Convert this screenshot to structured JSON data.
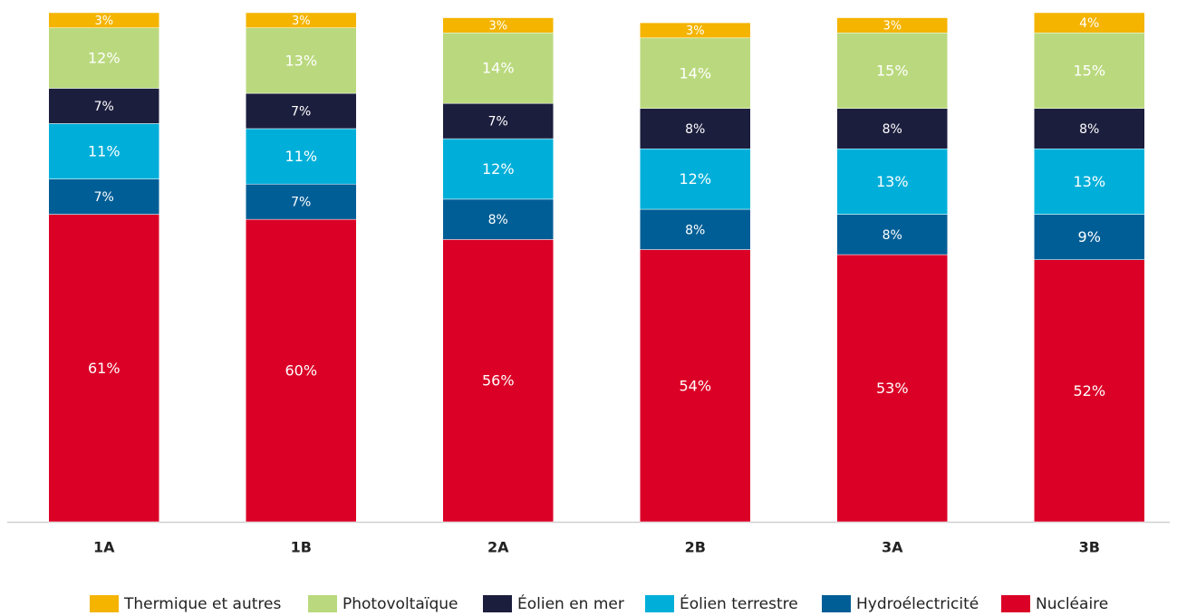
{
  "chart_data": {
    "type": "stacked_bar",
    "categories": [
      "1A",
      "1B",
      "2A",
      "2B",
      "3A",
      "3B"
    ],
    "series": [
      {
        "name": "Thermique et autres",
        "color": "#f4b400",
        "values": [
          3,
          3,
          3,
          3,
          3,
          4
        ],
        "value_labels": [
          "3%",
          "3%",
          "3%",
          "3%",
          "3%",
          "4%"
        ]
      },
      {
        "name": "Photovoltaïque",
        "color": "#bad97e",
        "values": [
          12,
          13,
          14,
          14,
          15,
          15
        ],
        "value_labels": [
          "12%",
          "13%",
          "14%",
          "14%",
          "15%",
          "15%"
        ]
      },
      {
        "name": "Éolien en mer",
        "color": "#1c1e3e",
        "values": [
          7,
          7,
          7,
          8,
          8,
          8
        ],
        "value_labels": [
          "7%",
          "7%",
          "7%",
          "8%",
          "8%",
          "8%"
        ]
      },
      {
        "name": "Éolien terrestre",
        "color": "#00afd9",
        "values": [
          11,
          11,
          12,
          12,
          13,
          13
        ],
        "value_labels": [
          "11%",
          "11%",
          "12%",
          "12%",
          "13%",
          "13%"
        ]
      },
      {
        "name": "Hydroélectricité",
        "color": "#005e96",
        "values": [
          7,
          7,
          8,
          8,
          8,
          9
        ],
        "value_labels": [
          "7%",
          "7%",
          "8%",
          "8%",
          "8%",
          "9%"
        ]
      },
      {
        "name": "Nucléaire",
        "color": "#db0026",
        "values": [
          61,
          60,
          56,
          54,
          53,
          52
        ],
        "value_labels": [
          "61%",
          "60%",
          "56%",
          "54%",
          "53%",
          "52%"
        ]
      }
    ]
  }
}
